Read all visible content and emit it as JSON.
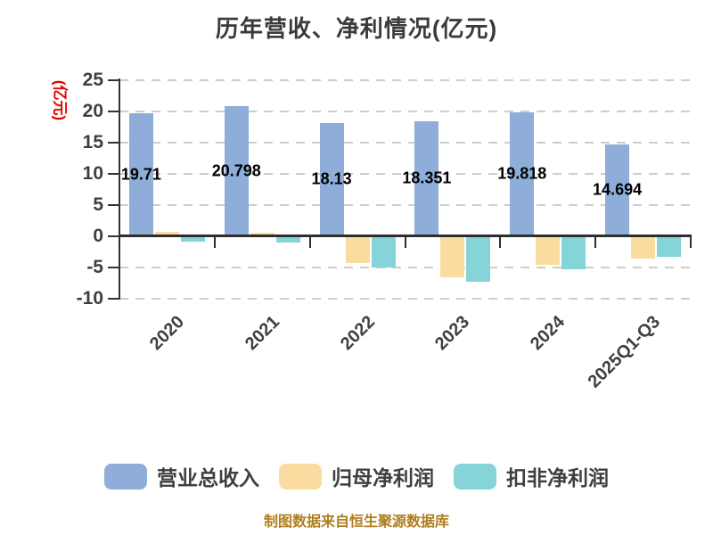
{
  "title": "历年营收、净利情况(亿元)",
  "footer": "制图数据来自恒生聚源数据库",
  "colors": {
    "revenue_bar": "#8eadd8",
    "net_profit_bar": "#fbdca0",
    "deducted_profit_bar": "#84d4d8",
    "axis": "#333333",
    "gridline": "#cdcdcd",
    "title_text": "#3b3b3b",
    "tick_text": "#3f3f3f",
    "y_axis_name_text": "#e60000",
    "footer_text": "#b07d1e"
  },
  "chart_data": {
    "type": "bar",
    "title": "历年营收、净利情况(亿元)",
    "ylabel": "(亿元)",
    "xlabel": "",
    "ylim": [
      -10,
      25
    ],
    "y_ticks": [
      25,
      20,
      15,
      10,
      5,
      0,
      -5,
      -10
    ],
    "grid": "horizontal dashed",
    "legend_position": "bottom",
    "x_label_rotation": 45,
    "categories": [
      "2020",
      "2021",
      "2022",
      "2023",
      "2024",
      "2025Q1-Q3"
    ],
    "series": [
      {
        "name": "营业总收入",
        "color": "#8eadd8",
        "values": [
          19.71,
          20.798,
          18.13,
          18.351,
          19.818,
          14.694
        ],
        "labels_visible": true
      },
      {
        "name": "归母净利润",
        "color": "#fbdca0",
        "values": [
          0.7,
          0.5,
          -4.4,
          -6.6,
          -4.7,
          -3.6
        ],
        "labels_visible": false
      },
      {
        "name": "扣非净利润",
        "color": "#84d4d8",
        "values": [
          -0.9,
          -1.0,
          -5.1,
          -7.3,
          -5.4,
          -3.4
        ],
        "labels_visible": false
      }
    ]
  }
}
